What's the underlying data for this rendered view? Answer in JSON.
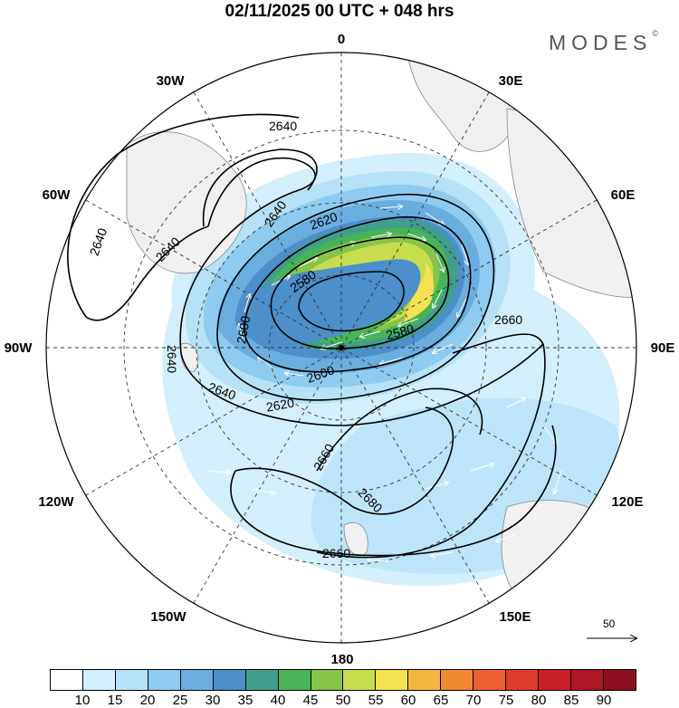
{
  "title": "02/11/2025  00 UTC  + 048 hrs",
  "brand": {
    "text": "MODES",
    "mark": "©"
  },
  "longitude_labels": {
    "lon_0": "0",
    "lon_30e": "30E",
    "lon_60e": "60E",
    "lon_90e": "90E",
    "lon_120e": "120E",
    "lon_150e": "150E",
    "lon_180": "180",
    "lon_150w": "150W",
    "lon_120w": "120W",
    "lon_90w": "90W",
    "lon_60w": "60W",
    "lon_30w": "30W"
  },
  "contour_labels": {
    "c1": "2640",
    "c2": "2640",
    "c3": "2640",
    "c4": "2640",
    "c5": "2640",
    "c6": "2640",
    "c7": "2620",
    "c8": "2580",
    "c9": "2600",
    "c10": "2580",
    "c11": "2660",
    "c12": "2600",
    "c13": "2620",
    "c14": "2660",
    "c15": "2680",
    "c16": "2660"
  },
  "wind_scale": {
    "value": "50"
  },
  "colorbar": {
    "colors": [
      "#ffffff",
      "#d4effc",
      "#b5e2f7",
      "#8ecbf0",
      "#6aaedf",
      "#4c8fca",
      "#419e8a",
      "#48b457",
      "#86c54a",
      "#c7dd4e",
      "#f5e152",
      "#f3b53f",
      "#ef8a33",
      "#eb6030",
      "#e03a2b",
      "#c91f26",
      "#ad1623",
      "#8b0f1e"
    ],
    "labels": [
      "10",
      "15",
      "20",
      "25",
      "30",
      "35",
      "40",
      "45",
      "50",
      "55",
      "60",
      "65",
      "70",
      "75",
      "80",
      "85",
      "90"
    ]
  }
}
